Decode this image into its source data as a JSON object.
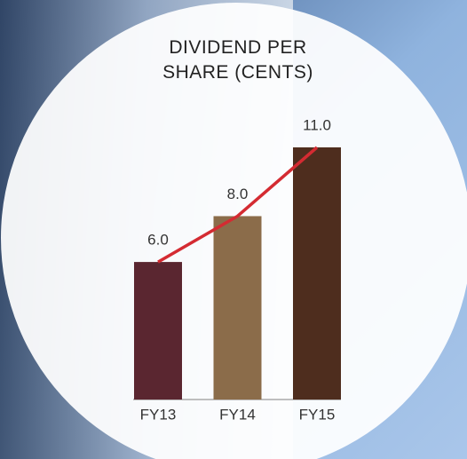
{
  "chart_data": {
    "type": "bar",
    "title": "DIVIDEND PER SHARE (CENTS)",
    "categories": [
      "FY13",
      "FY14",
      "FY15"
    ],
    "values": [
      6,
      8,
      11
    ],
    "value_labels": [
      "6.0",
      "8.0",
      "11.0"
    ],
    "colors": [
      "#5a2630",
      "#8b6c4a",
      "#4e2d1e"
    ],
    "trend_line": true,
    "line_color": "#d42b32"
  }
}
